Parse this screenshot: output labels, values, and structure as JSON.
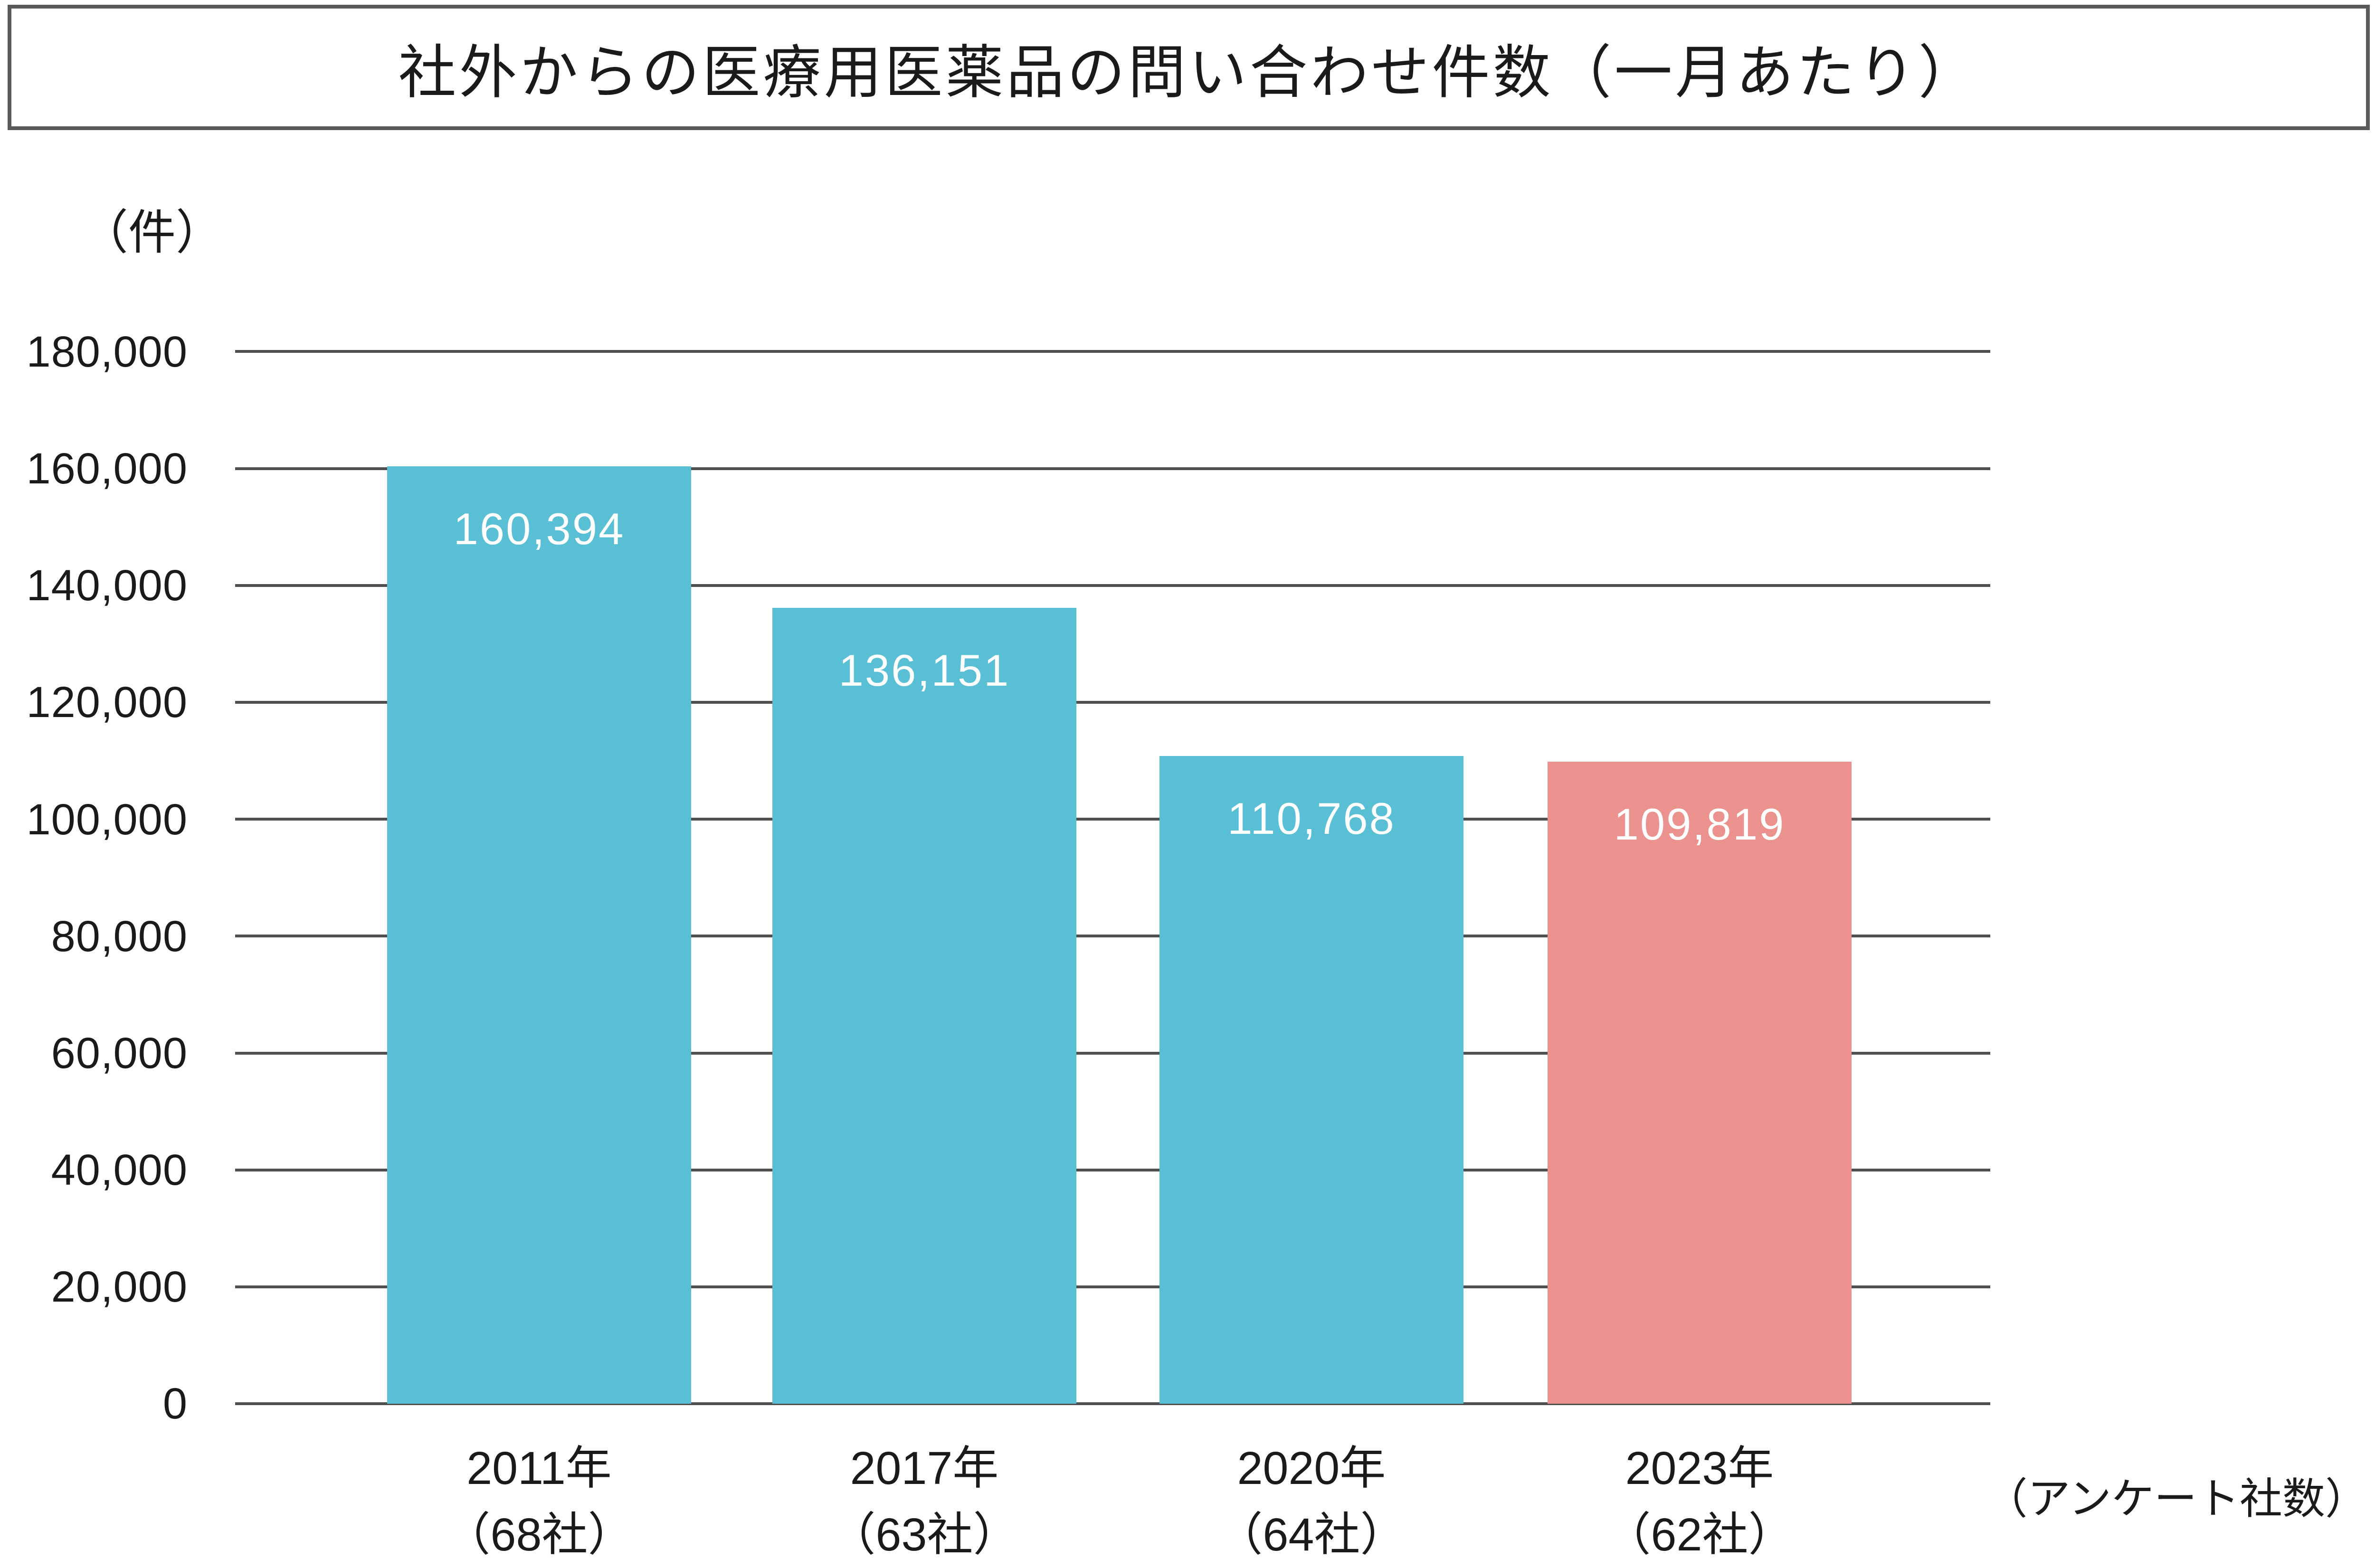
{
  "title": "社外からの医療用医薬品の問い合わせ件数（一月あたり）",
  "y_axis": {
    "unit_label": "（件）",
    "ticks": [
      "180,000",
      "160,000",
      "140,000",
      "120,000",
      "100,000",
      "80,000",
      "60,000",
      "40,000",
      "20,000",
      "0"
    ]
  },
  "footnote": "（アンケート社数）",
  "colors": {
    "teal": "#58BFD4",
    "salmon": "#EB928E",
    "grid": "#4F4F4F",
    "border": "#5A5A5A",
    "text": "#1A1A1A",
    "white": "#FFFFFF"
  },
  "chart_data": {
    "type": "bar",
    "title": "社外からの医療用医薬品の問い合わせ件数（一月あたり）",
    "categories": [
      "2011年",
      "2017年",
      "2020年",
      "2023年"
    ],
    "category_sublabels": [
      "（68社）",
      "（63社）",
      "（64社）",
      "（62社）"
    ],
    "values": [
      160394,
      136151,
      110768,
      109819
    ],
    "value_labels": [
      "160,394",
      "136,151",
      "110,768",
      "109,819"
    ],
    "bar_colors": [
      "#58BFD4",
      "#58BFD4",
      "#58BFD4",
      "#EB928E"
    ],
    "xlabel": "",
    "ylabel": "（件）",
    "ylim": [
      0,
      180000
    ],
    "ytick_step": 20000,
    "grid": true,
    "legend_position": "none",
    "annotation": "（アンケート社数）"
  }
}
